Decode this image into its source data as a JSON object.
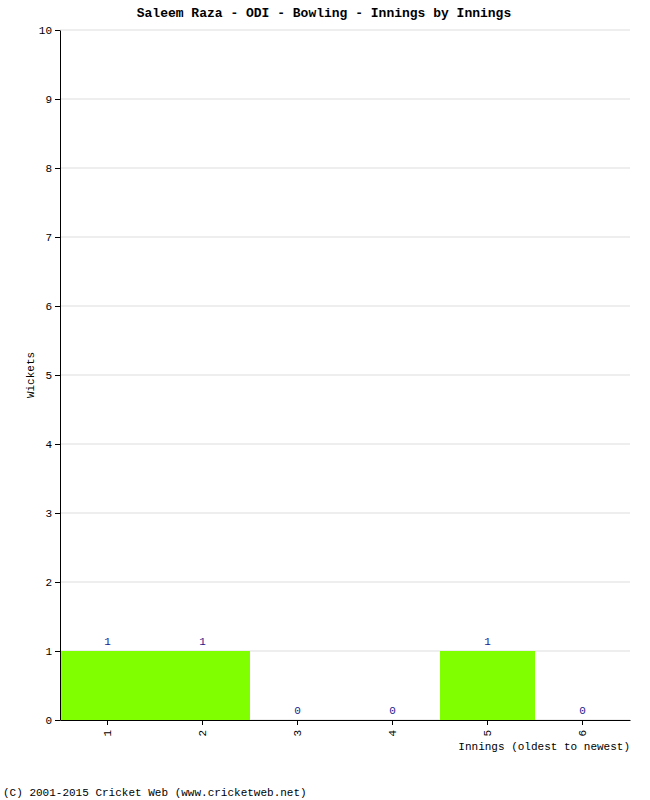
{
  "chart_data": {
    "type": "bar",
    "title": "Saleem Raza - ODI - Bowling - Innings by Innings",
    "x_label": "Innings (oldest to newest)",
    "y_label": "Wickets",
    "annotations": [
      "(C) 2001-2015 Cricket Web (www.cricketweb.net)"
    ],
    "categories": [
      "1",
      "2",
      "3",
      "4",
      "5",
      "6"
    ],
    "values": [
      1,
      1,
      0,
      0,
      1,
      0
    ],
    "color": "#7fff00",
    "ylim": [
      0,
      10
    ],
    "yticks": [
      0,
      1,
      2,
      3,
      4,
      5,
      6,
      7,
      8,
      9,
      10
    ],
    "grid": true,
    "data_labels": true
  }
}
